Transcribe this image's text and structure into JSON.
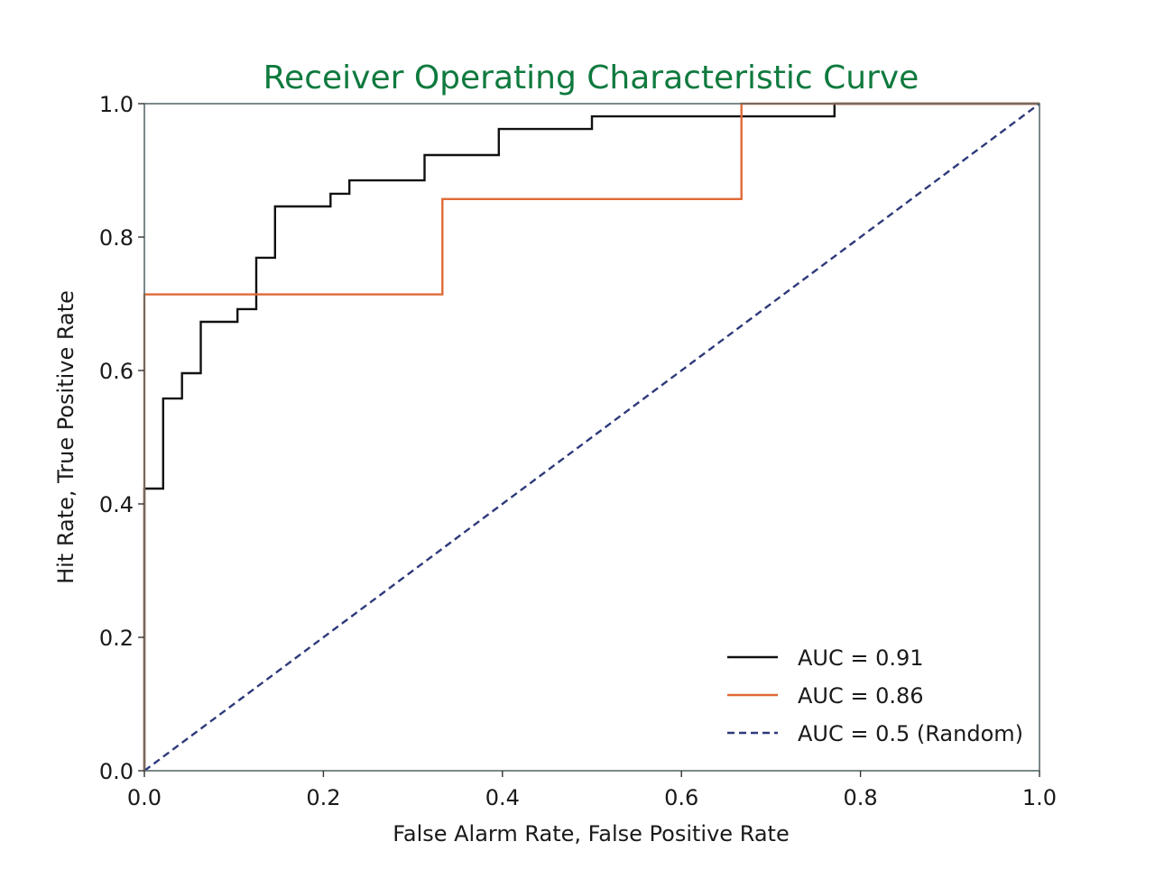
{
  "chart_data": {
    "type": "line",
    "title": "Receiver Operating Characteristic Curve",
    "xlabel": "False Alarm Rate, False Positive Rate",
    "ylabel": "Hit Rate, True Positive Rate",
    "xlim": [
      0.0,
      1.0
    ],
    "ylim": [
      0.0,
      1.0
    ],
    "xticks": [
      "0.0",
      "0.2",
      "0.4",
      "0.6",
      "0.8",
      "1.0"
    ],
    "yticks": [
      "0.0",
      "0.2",
      "0.4",
      "0.6",
      "0.8",
      "1.0"
    ],
    "grid": false,
    "legend_position": "lower-right",
    "colors": {
      "title": "#0f7a3e",
      "frame": "#5a6a6a"
    },
    "series": [
      {
        "name": "AUC = 0.91",
        "color": "#111111",
        "style": "step",
        "x": [
          0.0,
          0.0,
          0.0,
          0.021,
          0.021,
          0.042,
          0.042,
          0.063,
          0.063,
          0.104,
          0.104,
          0.125,
          0.125,
          0.146,
          0.146,
          0.208,
          0.208,
          0.229,
          0.229,
          0.313,
          0.313,
          0.396,
          0.396,
          0.5,
          0.5,
          0.771,
          0.771,
          1.0
        ],
        "y": [
          0.0,
          0.14,
          0.423,
          0.423,
          0.558,
          0.558,
          0.596,
          0.596,
          0.673,
          0.673,
          0.692,
          0.692,
          0.769,
          0.769,
          0.846,
          0.846,
          0.865,
          0.865,
          0.885,
          0.885,
          0.923,
          0.923,
          0.962,
          0.962,
          0.981,
          0.981,
          1.0,
          1.0
        ]
      },
      {
        "name": "AUC = 0.86",
        "color": "#e06a35",
        "style": "step",
        "x": [
          0.0,
          0.0,
          0.333,
          0.333,
          0.667,
          0.667,
          1.0
        ],
        "y": [
          0.0,
          0.714,
          0.714,
          0.857,
          0.857,
          1.0,
          1.0
        ]
      },
      {
        "name": "AUC = 0.5 (Random)",
        "color": "#2e3a7a",
        "style": "dashed",
        "x": [
          0.0,
          1.0
        ],
        "y": [
          0.0,
          1.0
        ]
      }
    ]
  }
}
